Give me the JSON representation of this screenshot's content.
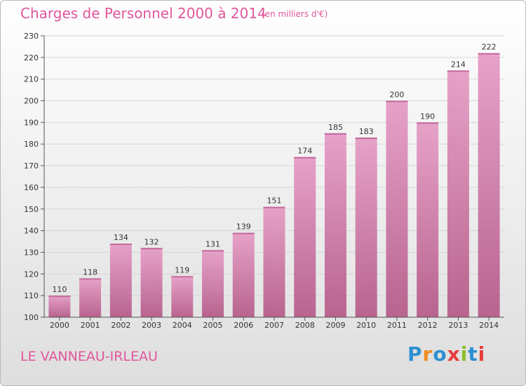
{
  "header": {
    "title": "Charges de Personnel 2000 à 2014",
    "subtitle": "(en milliers d'€)"
  },
  "footer": {
    "town": "LE VANNEAU-IRLEAU",
    "logo_text": "Proxiti",
    "logo_colors": [
      "#2d8fd0",
      "#f08c1e",
      "#2d8fd0",
      "#e63c3c",
      "#8cbe2a",
      "#2d8fd0",
      "#e63c3c"
    ]
  },
  "colors": {
    "title": "#e0569c",
    "bar_top": "#e6a2c8",
    "bar_bottom": "#b8648f"
  },
  "chart_data": {
    "type": "bar",
    "title": "Charges de Personnel 2000 à 2014",
    "xlabel": "",
    "ylabel": "",
    "categories": [
      "2000",
      "2001",
      "2002",
      "2003",
      "2004",
      "2005",
      "2006",
      "2007",
      "2008",
      "2009",
      "2010",
      "2011",
      "2012",
      "2013",
      "2014"
    ],
    "values": [
      110,
      118,
      134,
      132,
      119,
      131,
      139,
      151,
      174,
      185,
      183,
      200,
      190,
      214,
      222
    ],
    "ylim": [
      100,
      230
    ],
    "yticks": [
      100,
      110,
      120,
      130,
      140,
      150,
      160,
      170,
      180,
      190,
      200,
      210,
      220,
      230
    ],
    "grid": true,
    "data_labels": true
  }
}
